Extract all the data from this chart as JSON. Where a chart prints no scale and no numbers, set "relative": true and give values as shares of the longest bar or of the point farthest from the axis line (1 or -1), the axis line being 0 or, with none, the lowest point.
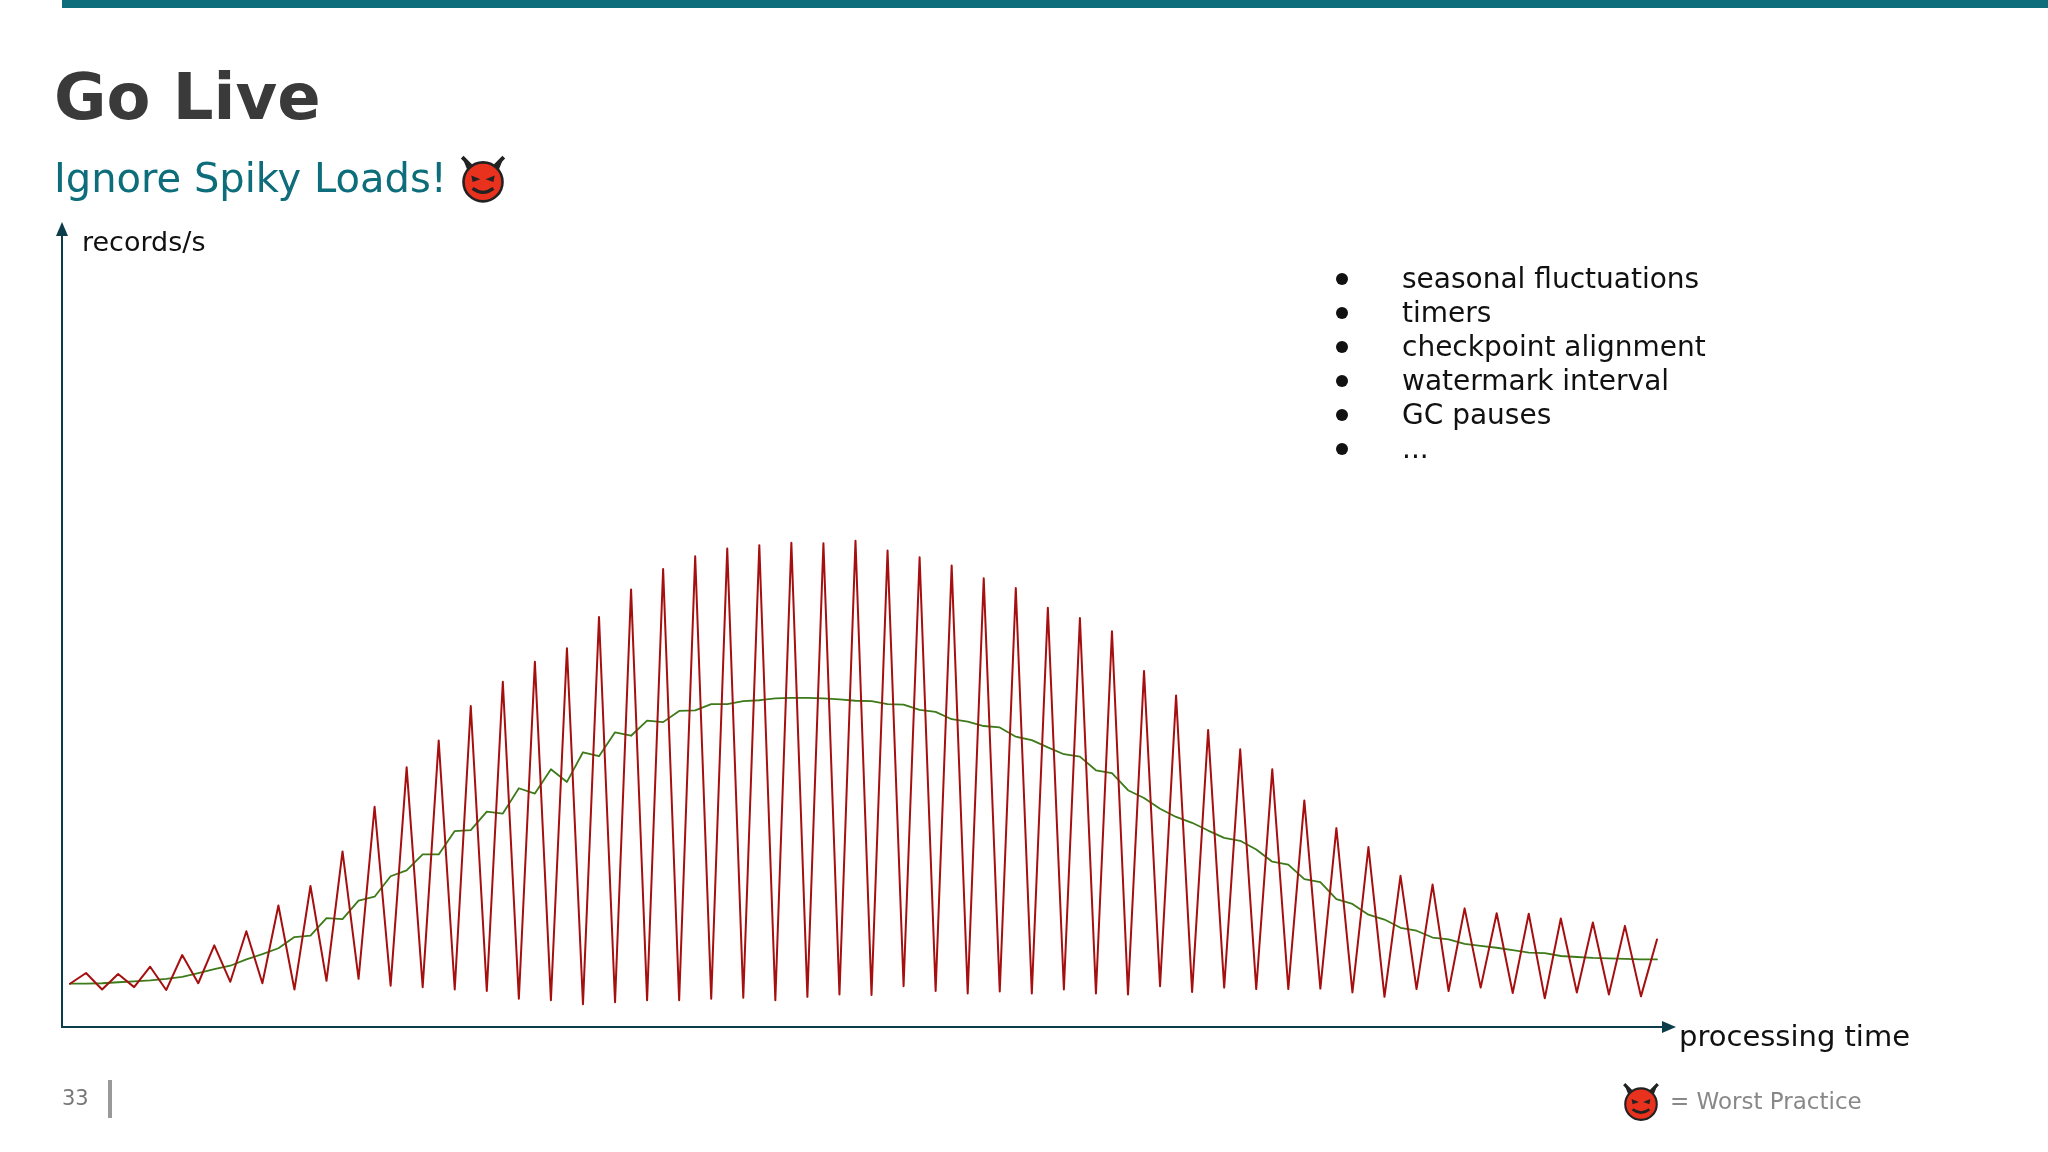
{
  "chart_data": {
    "type": "line",
    "title": "Go Live",
    "subtitle": "Ignore Spiky Loads!",
    "xlabel": "processing time",
    "relative": true,
    "tick_labels": false,
    "marker": "none",
    "annotations": [
      "seasonal fluctuations",
      "timers",
      "checkpoint alignment",
      "watermark interval",
      "GC pauses",
      "...",
      "33",
      "= Worst Practice",
      "records/s"
    ],
    "categories": [
      null,
      null,
      null,
      null,
      null,
      null,
      null,
      null,
      null,
      null,
      null,
      null,
      null,
      null,
      null,
      null,
      null,
      null,
      null,
      null,
      null,
      null,
      null,
      null,
      null,
      null,
      null,
      null,
      null,
      null,
      null,
      null,
      null,
      null,
      null,
      null,
      null,
      null,
      null,
      null,
      null,
      null,
      null,
      null,
      null,
      null,
      null,
      null,
      null,
      null,
      null,
      null,
      null,
      null,
      null,
      null,
      null,
      null,
      null,
      null,
      null,
      null,
      null,
      null,
      null,
      null,
      null,
      null,
      null,
      null,
      null,
      null,
      null,
      null,
      null,
      null,
      null,
      null,
      null,
      null,
      null,
      null,
      null,
      null,
      null,
      null,
      null,
      null,
      null,
      null,
      null,
      null,
      null,
      null,
      null,
      null,
      null,
      null,
      null,
      null
    ],
    "series": [
      {
        "color": "#a50f0f",
        "values": [
          0.089,
          0.111,
          0.077,
          0.109,
          0.082,
          0.124,
          0.076,
          0.148,
          0.09,
          0.168,
          0.093,
          0.197,
          0.09,
          0.25,
          0.077,
          0.29,
          0.095,
          0.361,
          0.099,
          0.453,
          0.085,
          0.534,
          0.082,
          0.589,
          0.077,
          0.66,
          0.074,
          0.71,
          0.058,
          0.751,
          0.055,
          0.779,
          0.047,
          0.843,
          0.051,
          0.9,
          0.055,
          0.942,
          0.055,
          0.968,
          0.058,
          0.984,
          0.06,
          0.991,
          0.055,
          0.996,
          0.062,
          0.995,
          0.067,
          1,
          0.066,
          0.98,
          0.084,
          0.966,
          0.074,
          0.949,
          0.069,
          0.923,
          0.073,
          0.903,
          0.069,
          0.862,
          0.077,
          0.841,
          0.069,
          0.814,
          0.067,
          0.732,
          0.084,
          0.682,
          0.072,
          0.611,
          0.081,
          0.571,
          0.078,
          0.53,
          0.078,
          0.466,
          0.079,
          0.409,
          0.071,
          0.37,
          0.062,
          0.311,
          0.078,
          0.293,
          0.074,
          0.244,
          0.081,
          0.234,
          0.07,
          0.233,
          0.059,
          0.223,
          0.071,
          0.215,
          0.067,
          0.208,
          0.063,
          0.18
        ]
      },
      {
        "color": "#3d7a1a",
        "values": [
          0.089,
          0.089,
          0.09,
          0.092,
          0.094,
          0.096,
          0.099,
          0.103,
          0.111,
          0.119,
          0.126,
          0.139,
          0.15,
          0.162,
          0.185,
          0.188,
          0.224,
          0.222,
          0.26,
          0.268,
          0.31,
          0.322,
          0.355,
          0.355,
          0.403,
          0.405,
          0.443,
          0.439,
          0.491,
          0.48,
          0.53,
          0.504,
          0.565,
          0.557,
          0.606,
          0.599,
          0.63,
          0.627,
          0.65,
          0.651,
          0.664,
          0.664,
          0.67,
          0.672,
          0.676,
          0.677,
          0.677,
          0.676,
          0.674,
          0.671,
          0.67,
          0.664,
          0.663,
          0.652,
          0.648,
          0.633,
          0.628,
          0.619,
          0.616,
          0.597,
          0.59,
          0.575,
          0.561,
          0.556,
          0.528,
          0.522,
          0.487,
          0.471,
          0.449,
          0.432,
          0.42,
          0.404,
          0.389,
          0.383,
          0.365,
          0.34,
          0.334,
          0.304,
          0.298,
          0.263,
          0.253,
          0.231,
          0.221,
          0.204,
          0.198,
          0.184,
          0.18,
          0.171,
          0.167,
          0.163,
          0.158,
          0.153,
          0.152,
          0.146,
          0.144,
          0.142,
          0.141,
          0.14,
          0.139,
          0.139
        ]
      }
    ]
  }
}
